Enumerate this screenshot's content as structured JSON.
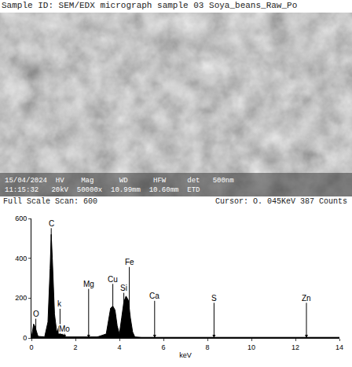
{
  "header": {
    "title": "Sample ID: SEM/EDX micrograph sample 03 Soya_beans_Raw_Po"
  },
  "micrograph": {
    "info_lines": [
      "15/04/2024  HV    Mag      WD      HFW     det   500nm",
      "11:15:32   20kV  50000x  10.99mm  10.60mm  ETD"
    ]
  },
  "footer": {
    "left": "Full Scale Scan: 600",
    "right": "Cursor: O. 045KeV 387 Counts"
  },
  "chart_data": {
    "type": "area",
    "color": "#000000",
    "xlabel": "keV",
    "x": [
      0,
      0.05,
      0.1,
      0.15,
      0.2,
      0.25,
      0.3,
      0.6,
      0.75,
      0.85,
      0.9,
      0.95,
      1.05,
      1.15,
      1.2,
      1.25,
      1.3,
      1.35,
      1.4,
      1.5,
      1.6,
      2.0,
      3.0,
      3.4,
      3.5,
      3.6,
      3.7,
      3.8,
      3.9,
      4.0,
      4.1,
      4.2,
      4.3,
      4.4,
      4.5,
      4.6,
      4.7,
      5.0,
      6,
      8,
      10,
      12,
      14
    ],
    "values": [
      0,
      30,
      70,
      60,
      40,
      20,
      8,
      5,
      80,
      350,
      520,
      400,
      120,
      30,
      40,
      60,
      30,
      15,
      20,
      10,
      5,
      5,
      5,
      20,
      80,
      150,
      160,
      140,
      60,
      20,
      100,
      180,
      210,
      190,
      100,
      30,
      5,
      3,
      3,
      3,
      3,
      3,
      3
    ],
    "xlim": [
      0,
      14
    ],
    "xticks": [
      0,
      2,
      4,
      6,
      8,
      10,
      12,
      14
    ],
    "ylim": [
      0,
      600
    ],
    "yticks": [
      0,
      200,
      400,
      600
    ],
    "grid": false,
    "annotations": [
      {
        "text": "O",
        "x": 0.2,
        "y": 120
      },
      {
        "text": "C",
        "x": 0.9,
        "y": 575
      },
      {
        "text": "k",
        "x": 1.3,
        "y": 170
      },
      {
        "text": "Mo",
        "x": 1.5,
        "y": 45
      },
      {
        "text": "Mg",
        "x": 2.6,
        "y": 270
      },
      {
        "text": "Cu",
        "x": 3.7,
        "y": 295
      },
      {
        "text": "Si",
        "x": 4.2,
        "y": 250
      },
      {
        "text": "Fe",
        "x": 4.45,
        "y": 380
      },
      {
        "text": "Ca",
        "x": 5.6,
        "y": 210
      },
      {
        "text": "S",
        "x": 8.3,
        "y": 200
      },
      {
        "text": "Zn",
        "x": 12.5,
        "y": 200
      }
    ]
  }
}
